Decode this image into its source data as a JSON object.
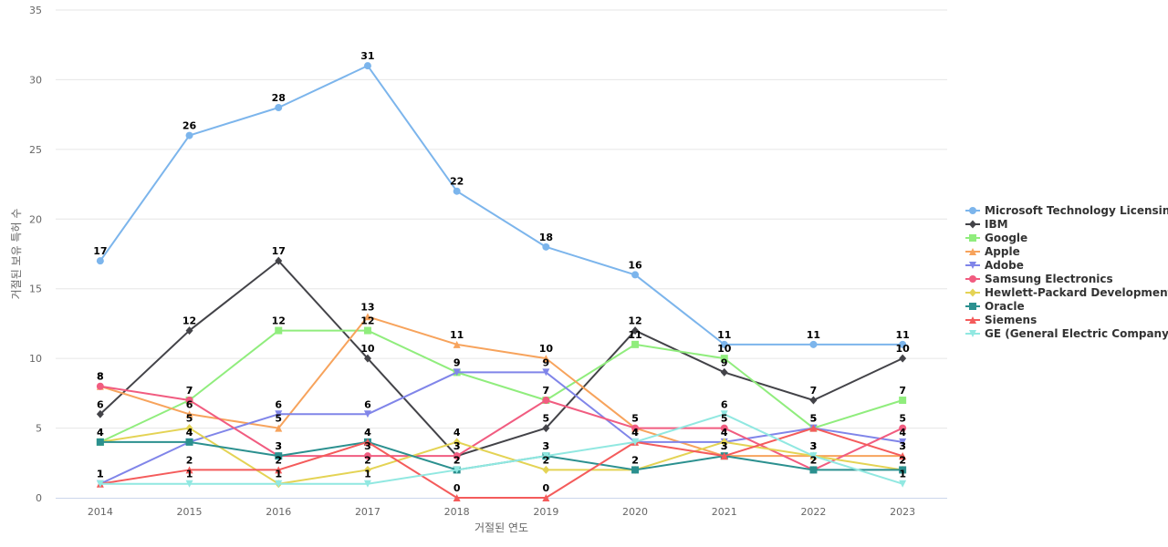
{
  "chart_data": {
    "type": "line",
    "title": "",
    "xlabel": "거절된 연도",
    "ylabel": "거절된 보유 특허 수",
    "x": [
      "2014",
      "2015",
      "2016",
      "2017",
      "2018",
      "2019",
      "2020",
      "2021",
      "2022",
      "2023"
    ],
    "ylim": [
      0,
      35
    ],
    "yticks": [
      0,
      5,
      10,
      15,
      20,
      25,
      30,
      35
    ],
    "grid": true,
    "legend_position": "right",
    "series": [
      {
        "name": "Microsoft Technology Licensing",
        "color": "#7cb5ec",
        "marker": "circle",
        "values": [
          17,
          26,
          28,
          31,
          22,
          18,
          16,
          11,
          11,
          11
        ]
      },
      {
        "name": "IBM",
        "color": "#434348",
        "marker": "diamond",
        "values": [
          6,
          12,
          17,
          10,
          3,
          5,
          12,
          9,
          7,
          10
        ]
      },
      {
        "name": "Google",
        "color": "#90ed7d",
        "marker": "square",
        "values": [
          4,
          7,
          12,
          12,
          9,
          7,
          11,
          10,
          5,
          7
        ]
      },
      {
        "name": "Apple",
        "color": "#f7a35c",
        "marker": "triangle",
        "values": [
          8,
          6,
          5,
          13,
          11,
          10,
          5,
          3,
          3,
          3
        ]
      },
      {
        "name": "Adobe",
        "color": "#8085e9",
        "marker": "triangle-down",
        "values": [
          1,
          4,
          6,
          6,
          9,
          9,
          4,
          4,
          5,
          4
        ]
      },
      {
        "name": "Samsung Electronics",
        "color": "#f15c80",
        "marker": "circle",
        "values": [
          8,
          7,
          3,
          3,
          3,
          7,
          5,
          5,
          2,
          5
        ]
      },
      {
        "name": "Hewlett-Packard Development",
        "color": "#e4d354",
        "marker": "diamond",
        "values": [
          4,
          5,
          1,
          2,
          4,
          2,
          2,
          4,
          3,
          2
        ]
      },
      {
        "name": "Oracle",
        "color": "#2b908f",
        "marker": "square",
        "values": [
          4,
          4,
          3,
          4,
          2,
          3,
          2,
          3,
          2,
          2
        ]
      },
      {
        "name": "Siemens",
        "color": "#f45b5b",
        "marker": "triangle",
        "values": [
          1,
          2,
          2,
          4,
          0,
          0,
          4,
          3,
          5,
          3
        ]
      },
      {
        "name": "GE (General Electric Company)",
        "color": "#91e8e1",
        "marker": "triangle-down",
        "values": [
          1,
          1,
          1,
          1,
          2,
          3,
          4,
          6,
          3,
          1
        ]
      }
    ]
  }
}
